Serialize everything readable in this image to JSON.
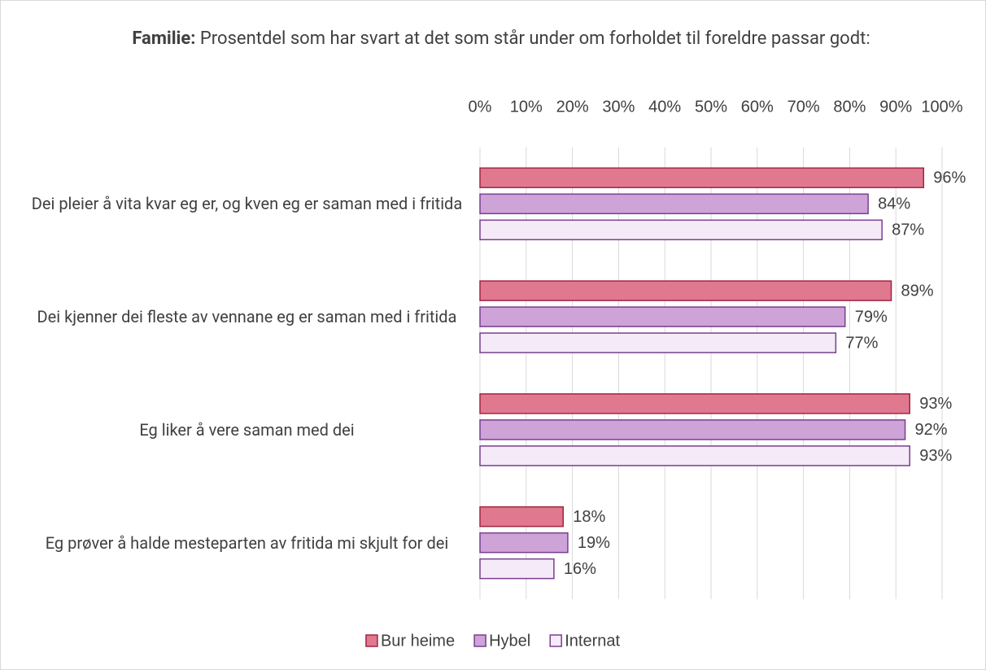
{
  "chart_data": {
    "type": "hbar",
    "title_prefix": "Familie:",
    "title": "Prosentdel som har svart at det som står under om forholdet til foreldre passar godt:",
    "categories": [
      "Dei pleier å vita kvar eg er, og kven eg er saman med i fritida",
      "Dei kjenner dei fleste av vennane eg er saman med i fritida",
      "Eg liker å vere saman med dei",
      "Eg prøver å halde mesteparten av fritida mi skjult for dei"
    ],
    "series": [
      {
        "name": "Bur heime",
        "color": "#e07990",
        "stroke": "#a3243f",
        "values": [
          96,
          89,
          93,
          18
        ],
        "value_labels": [
          "96%",
          "89%",
          "93%",
          "18%"
        ]
      },
      {
        "name": "Hybel",
        "color": "#cda3d8",
        "stroke": "#7a3f8f",
        "values": [
          84,
          79,
          92,
          19
        ],
        "value_labels": [
          "84%",
          "79%",
          "92%",
          "19%"
        ]
      },
      {
        "name": "Internat",
        "color": "#f5eaf8",
        "stroke": "#7a3f8f",
        "values": [
          87,
          77,
          93,
          16
        ],
        "value_labels": [
          "87%",
          "77%",
          "93%",
          "16%"
        ]
      }
    ],
    "xlim": [
      0,
      100
    ],
    "xticks": [
      {
        "value": 0,
        "label": "0%"
      },
      {
        "value": 10,
        "label": "10%"
      },
      {
        "value": 20,
        "label": "20%"
      },
      {
        "value": 30,
        "label": "30%"
      },
      {
        "value": 40,
        "label": "40%"
      },
      {
        "value": 50,
        "label": "50%"
      },
      {
        "value": 60,
        "label": "60%"
      },
      {
        "value": 70,
        "label": "70%"
      },
      {
        "value": 80,
        "label": "80%"
      },
      {
        "value": 90,
        "label": "90%"
      },
      {
        "value": 100,
        "label": "100%"
      }
    ],
    "grid": true,
    "legend": "bottom"
  }
}
